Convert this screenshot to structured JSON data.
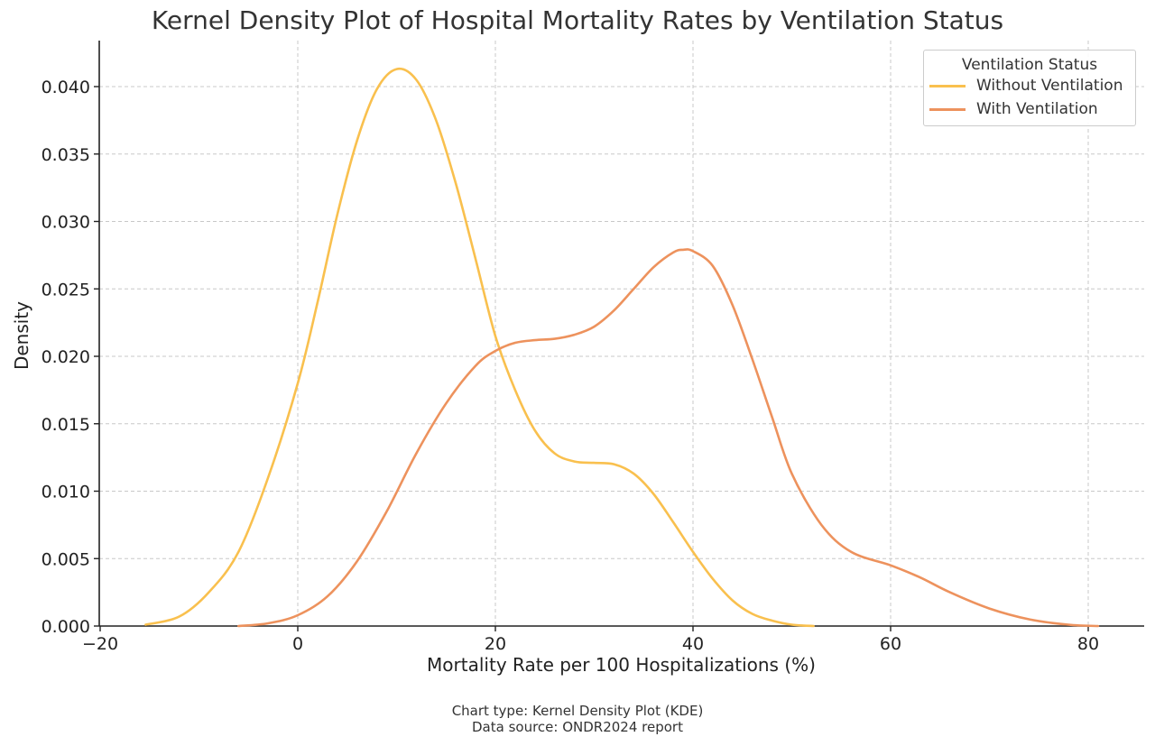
{
  "chart_data": {
    "type": "line",
    "title": "Kernel Density Plot of Hospital Mortality Rates by Ventilation Status",
    "xlabel": "Mortality Rate per 100 Hospitalizations (%)",
    "ylabel": "Density",
    "xlim": [
      -20,
      85
    ],
    "ylim": [
      0,
      0.0435
    ],
    "x_ticks": [
      -20,
      0,
      20,
      40,
      60,
      80
    ],
    "x_tick_labels": [
      "−20",
      "0",
      "20",
      "40",
      "60",
      "80"
    ],
    "y_ticks": [
      0,
      0.005,
      0.01,
      0.015,
      0.02,
      0.025,
      0.03,
      0.035,
      0.04
    ],
    "y_tick_labels": [
      "0.000",
      "0.005",
      "0.010",
      "0.015",
      "0.020",
      "0.025",
      "0.030",
      "0.035",
      "0.040"
    ],
    "grid": true,
    "legend": {
      "title": "Ventilation Status",
      "placement": "top-right"
    },
    "series": [
      {
        "name": "Without Ventilation",
        "color": "#f9c04e",
        "points": [
          [
            -15.4,
            0.0001
          ],
          [
            -12,
            0.0007
          ],
          [
            -9,
            0.0025
          ],
          [
            -6,
            0.0055
          ],
          [
            -3,
            0.011
          ],
          [
            0,
            0.018
          ],
          [
            2,
            0.024
          ],
          [
            4,
            0.0305
          ],
          [
            6,
            0.036
          ],
          [
            8,
            0.0398
          ],
          [
            10,
            0.0413
          ],
          [
            12,
            0.0405
          ],
          [
            14,
            0.0375
          ],
          [
            16,
            0.0328
          ],
          [
            18,
            0.0272
          ],
          [
            20,
            0.0215
          ],
          [
            22,
            0.0175
          ],
          [
            24,
            0.0145
          ],
          [
            26,
            0.0128
          ],
          [
            28,
            0.0122
          ],
          [
            30,
            0.0121
          ],
          [
            32,
            0.012
          ],
          [
            34,
            0.0113
          ],
          [
            36,
            0.0098
          ],
          [
            38,
            0.0077
          ],
          [
            40,
            0.0055
          ],
          [
            42,
            0.0035
          ],
          [
            44,
            0.0019
          ],
          [
            46,
            0.0009
          ],
          [
            48,
            0.0004
          ],
          [
            50,
            0.0001
          ],
          [
            52.2,
            0.0
          ]
        ]
      },
      {
        "name": "With Ventilation",
        "color": "#ed925d",
        "points": [
          [
            -6,
            0.0
          ],
          [
            -3,
            0.0002
          ],
          [
            0,
            0.0008
          ],
          [
            3,
            0.0022
          ],
          [
            6,
            0.0048
          ],
          [
            9,
            0.0085
          ],
          [
            12,
            0.0128
          ],
          [
            15,
            0.0165
          ],
          [
            18,
            0.0193
          ],
          [
            20,
            0.0204
          ],
          [
            22,
            0.021
          ],
          [
            24,
            0.0212
          ],
          [
            26,
            0.0213
          ],
          [
            28,
            0.0216
          ],
          [
            30,
            0.0222
          ],
          [
            32,
            0.0234
          ],
          [
            34,
            0.025
          ],
          [
            36,
            0.0266
          ],
          [
            38,
            0.0277
          ],
          [
            39,
            0.0279
          ],
          [
            40,
            0.0278
          ],
          [
            42,
            0.0267
          ],
          [
            44,
            0.0238
          ],
          [
            46,
            0.0198
          ],
          [
            48,
            0.0155
          ],
          [
            50,
            0.0113
          ],
          [
            53,
            0.0075
          ],
          [
            56,
            0.0055
          ],
          [
            60,
            0.0045
          ],
          [
            63,
            0.0036
          ],
          [
            66,
            0.0025
          ],
          [
            70,
            0.0013
          ],
          [
            74,
            0.0005
          ],
          [
            78,
            0.0001
          ],
          [
            81,
            0.0
          ]
        ]
      }
    ]
  },
  "caption": {
    "line1": "Chart type: Kernel Density Plot (KDE)",
    "line2": "Data source: ONDR2024 report"
  }
}
